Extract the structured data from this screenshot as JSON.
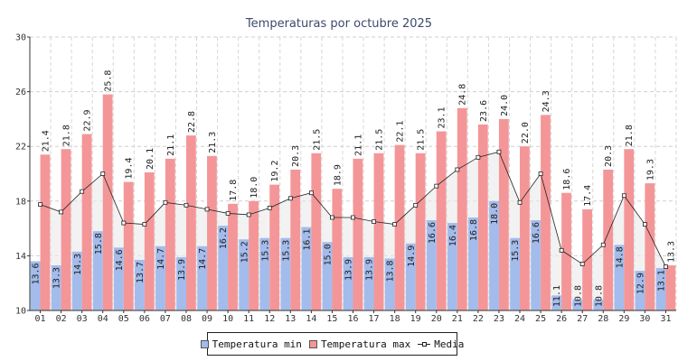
{
  "chart_data": {
    "type": "bar",
    "title": "Temperaturas por octubre 2025",
    "xlabel": "",
    "ylabel": "",
    "ylim": [
      10,
      30
    ],
    "yticks": [
      10,
      14,
      18,
      22,
      26,
      30
    ],
    "grid": true,
    "legend_position": "bottom-center",
    "categories": [
      "01",
      "02",
      "03",
      "04",
      "05",
      "06",
      "07",
      "08",
      "09",
      "10",
      "11",
      "12",
      "13",
      "14",
      "15",
      "16",
      "17",
      "18",
      "19",
      "20",
      "21",
      "22",
      "23",
      "24",
      "25",
      "26",
      "27",
      "28",
      "29",
      "30",
      "31"
    ],
    "series": [
      {
        "name": "Temperatura min",
        "kind": "bar",
        "color": "#a3bcec",
        "values": [
          13.6,
          13.3,
          14.3,
          15.8,
          14.6,
          13.7,
          14.7,
          13.9,
          14.7,
          16.2,
          15.2,
          15.3,
          15.3,
          16.1,
          15.0,
          13.9,
          13.9,
          13.8,
          14.9,
          16.6,
          16.4,
          16.8,
          18.0,
          15.3,
          16.6,
          11.1,
          10.8,
          10.8,
          14.8,
          12.9,
          13.1
        ]
      },
      {
        "name": "Temperatura max",
        "kind": "bar",
        "color": "#f49698",
        "values": [
          21.4,
          21.8,
          22.9,
          25.8,
          19.4,
          20.1,
          21.1,
          22.8,
          21.3,
          17.8,
          18.0,
          19.2,
          20.3,
          21.5,
          18.9,
          21.1,
          21.5,
          22.1,
          21.5,
          23.1,
          24.8,
          23.6,
          24.0,
          22.0,
          24.3,
          18.6,
          17.4,
          20.3,
          21.8,
          19.3,
          13.3
        ]
      },
      {
        "name": "Media",
        "kind": "line",
        "color": "#222222",
        "values": [
          17.75,
          17.2,
          18.7,
          20.0,
          16.4,
          16.3,
          17.9,
          17.7,
          17.4,
          17.1,
          17.0,
          17.5,
          18.2,
          18.6,
          16.8,
          16.8,
          16.5,
          16.3,
          17.7,
          19.1,
          20.3,
          21.2,
          21.6,
          17.9,
          20.0,
          14.4,
          13.4,
          14.8,
          18.4,
          16.3,
          13.2
        ]
      }
    ]
  }
}
